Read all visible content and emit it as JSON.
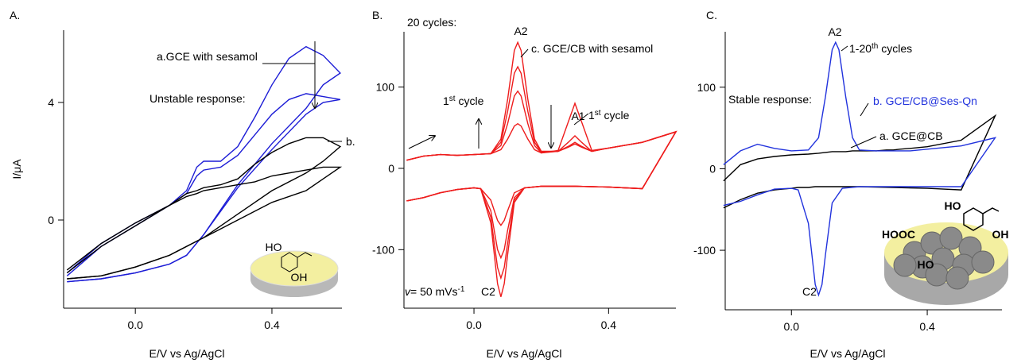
{
  "chart_data": [
    {
      "type": "line",
      "panel_label": "A.",
      "ylabel": "I/μA",
      "xlabel": "E/V vs Ag/AgCl",
      "xlim": [
        -0.21,
        0.605
      ],
      "ylim": [
        -3.0,
        6.46
      ],
      "xticks": [
        {
          "value": 0,
          "label": "0.0"
        },
        {
          "value": 0.4,
          "label": "0.4"
        }
      ],
      "yticks": [
        0,
        4
      ],
      "x": [
        -0.2,
        -0.1,
        0,
        0.1,
        0.15,
        0.18,
        0.2,
        0.25,
        0.3,
        0.35,
        0.4,
        0.45,
        0.5,
        0.55,
        0.6,
        0.55,
        0.5,
        0.4,
        0.3,
        0.2,
        0.15,
        0.1,
        0,
        -0.1,
        -0.2
      ],
      "series": [
        {
          "color": "#1c1cd6",
          "values": [
            -1.8,
            -0.8,
            -0.1,
            0.5,
            1.0,
            1.8,
            2.0,
            2.0,
            2.5,
            3.5,
            4.6,
            5.5,
            5.9,
            5.6,
            5.0,
            4.6,
            3.8,
            2.6,
            1.2,
            -0.5,
            -1.2,
            -1.5,
            -1.8,
            -2.0,
            -2.1
          ]
        },
        {
          "color": "#1c1cd6",
          "values": [
            -1.9,
            -0.9,
            -0.2,
            0.5,
            0.9,
            1.5,
            1.7,
            1.8,
            2.2,
            2.9,
            3.6,
            4.1,
            4.3,
            4.2,
            4.1,
            4.0,
            3.6,
            2.4,
            1.1,
            -0.5,
            -1.2,
            -1.5,
            -1.8,
            -2.0,
            -2.1
          ]
        },
        {
          "color": "#000000",
          "values": [
            -1.7,
            -0.8,
            -0.1,
            0.5,
            0.9,
            1.0,
            1.1,
            1.2,
            1.4,
            1.9,
            2.3,
            2.6,
            2.8,
            2.8,
            2.5,
            2.0,
            1.6,
            1.0,
            0.2,
            -0.6,
            -0.9,
            -1.2,
            -1.6,
            -1.9,
            -2.0
          ]
        },
        {
          "color": "#000000",
          "values": [
            -1.8,
            -0.9,
            -0.2,
            0.5,
            0.8,
            0.9,
            1.0,
            1.1,
            1.2,
            1.3,
            1.5,
            1.6,
            1.7,
            1.8,
            1.8,
            1.4,
            1.0,
            0.6,
            0.0,
            -0.6,
            -0.9,
            -1.2,
            -1.6,
            -1.9,
            -2.0
          ]
        }
      ],
      "annotations": [
        [
          "a.GCE with sesamol"
        ],
        [
          "Unstable response:"
        ],
        [
          "b."
        ]
      ],
      "inset_labels": [
        "HO",
        "OH"
      ]
    },
    {
      "type": "line",
      "panel_label": "B.",
      "xlabel": "E/V vs Ag/AgCl",
      "xlim": [
        -0.208,
        0.6
      ],
      "ylim": [
        -172,
        168
      ],
      "xticks": [
        {
          "value": 0,
          "label": "0.0"
        },
        {
          "value": 0.4,
          "label": "0.4"
        }
      ],
      "yticks": [
        -100,
        0,
        100
      ],
      "x": [
        -0.2,
        -0.15,
        -0.1,
        -0.05,
        0,
        0.05,
        0.08,
        0.1,
        0.12,
        0.13,
        0.14,
        0.16,
        0.18,
        0.2,
        0.25,
        0.28,
        0.3,
        0.32,
        0.35,
        0.4,
        0.5,
        0.6,
        0.5,
        0.4,
        0.3,
        0.2,
        0.15,
        0.12,
        0.1,
        0.09,
        0.08,
        0.07,
        0.05,
        0.02,
        0,
        -0.05,
        -0.1,
        -0.15,
        -0.2
      ],
      "series": [
        {
          "color": "#ee1c1c",
          "values": [
            10,
            15,
            17,
            16,
            17,
            18,
            23,
            36,
            52,
            55,
            52,
            36,
            23,
            19,
            22,
            57,
            80,
            57,
            22,
            25,
            32,
            45,
            -25,
            -23,
            -22,
            -22,
            -24,
            -30,
            -52,
            -64,
            -70,
            -64,
            -39,
            -25,
            -24,
            -26,
            -30,
            -36,
            -40
          ]
        },
        {
          "color": "#ee1c1c",
          "values": [
            10,
            15,
            17,
            16,
            17,
            18,
            28,
            55,
            89,
            95,
            89,
            55,
            28,
            19,
            21,
            32,
            40,
            32,
            21,
            25,
            32,
            45,
            -25,
            -23,
            -22,
            -22,
            -24,
            -36,
            -76,
            -100,
            -110,
            -100,
            -52,
            -25,
            -24,
            -26,
            -30,
            -36,
            -40
          ]
        },
        {
          "color": "#ee1c1c",
          "values": [
            10,
            15,
            17,
            16,
            17,
            18,
            32,
            70,
            117,
            125,
            117,
            70,
            32,
            20,
            21,
            27,
            32,
            27,
            21,
            25,
            32,
            45,
            -25,
            -23,
            -22,
            -22,
            -24,
            -39,
            -92,
            -122,
            -135,
            -122,
            -60,
            -25,
            -24,
            -26,
            -30,
            -36,
            -40
          ]
        },
        {
          "color": "#ee1c1c",
          "values": [
            10,
            15,
            17,
            16,
            17,
            18,
            36,
            85,
            145,
            155,
            145,
            85,
            36,
            21,
            21,
            26,
            30,
            26,
            21,
            25,
            32,
            45,
            -25,
            -23,
            -22,
            -22,
            -24,
            -42,
            -106,
            -142,
            -158,
            -142,
            -67,
            -25,
            -24,
            -26,
            -30,
            -36,
            -40
          ]
        }
      ],
      "annotations": [
        [
          "20 cycles:"
        ],
        [
          "A2"
        ],
        [
          "c. GCE/CB with sesamol"
        ],
        [
          "A1"
        ],
        [
          "1",
          "st",
          " cycle"
        ],
        [
          "1",
          "st",
          " cycle"
        ],
        [
          "C2"
        ],
        [
          "v",
          "= 50 mVs",
          "-1"
        ]
      ]
    },
    {
      "type": "line",
      "panel_label": "C.",
      "xlabel": "E/V vs Ag/AgCl",
      "xlim": [
        -0.195,
        0.62
      ],
      "ylim": [
        -173,
        168
      ],
      "xticks": [
        {
          "value": 0,
          "label": "0.0"
        },
        {
          "value": 0.4,
          "label": "0.4"
        }
      ],
      "yticks": [
        -100,
        0,
        100
      ],
      "x": [
        -0.2,
        -0.15,
        -0.1,
        -0.05,
        0,
        0.05,
        0.08,
        0.1,
        0.12,
        0.13,
        0.14,
        0.16,
        0.18,
        0.2,
        0.25,
        0.28,
        0.3,
        0.32,
        0.35,
        0.4,
        0.5,
        0.6,
        0.5,
        0.4,
        0.3,
        0.2,
        0.15,
        0.12,
        0.1,
        0.09,
        0.08,
        0.07,
        0.05,
        0.02,
        0,
        -0.05,
        -0.1,
        -0.15,
        -0.2
      ],
      "series": [
        {
          "color": "#000000",
          "values": [
            -15,
            5,
            12,
            15,
            17,
            18,
            19,
            20,
            21,
            21,
            21,
            21,
            22,
            22,
            22,
            23,
            23,
            24,
            25,
            27,
            35,
            65,
            -26,
            -24,
            -23,
            -22,
            -22,
            -22,
            -22,
            -22,
            -22,
            -22,
            -23,
            -23,
            -24,
            -26,
            -30,
            -38,
            -48
          ]
        },
        {
          "color": "#2233dd",
          "values": [
            5,
            22,
            30,
            25,
            22,
            23,
            38,
            88,
            146,
            155,
            146,
            88,
            38,
            23,
            22,
            22,
            22,
            22,
            22,
            24,
            28,
            38,
            -22,
            -22,
            -22,
            -22,
            -24,
            -42,
            -106,
            -142,
            -155,
            -142,
            -67,
            -26,
            -24,
            -25,
            -32,
            -40,
            -45
          ]
        }
      ],
      "annotations": [
        [
          "A2"
        ],
        [
          "1-20",
          "th",
          " cycles"
        ],
        [
          "Stable response:"
        ],
        [
          "b. GCE/CB@Ses-Qn"
        ],
        [
          "a. GCE@CB"
        ],
        [
          "C2"
        ]
      ],
      "inset_labels": [
        "HO",
        "OH",
        "HOOC",
        "HO"
      ]
    }
  ]
}
